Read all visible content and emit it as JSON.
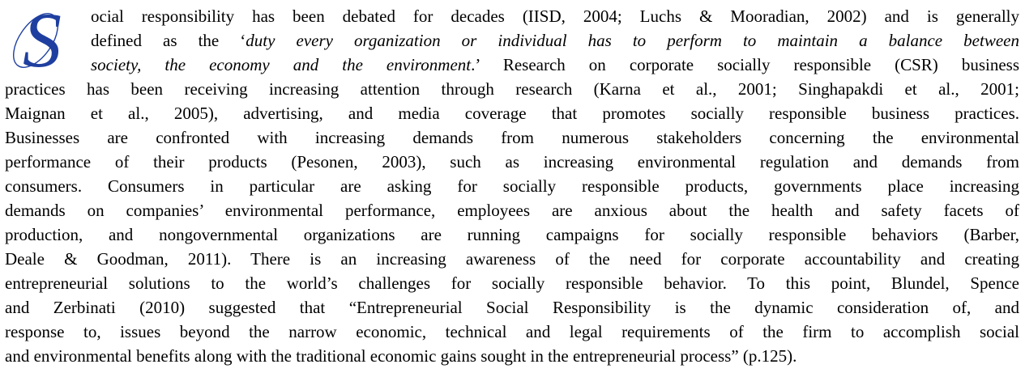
{
  "drop_cap": "S",
  "lines": [
    [
      "ocial responsibility has been debated for decades (IISD, 2004; Luchs & Mooradian, 2002) and is generally"
    ],
    [
      "defined as the ‘",
      {
        "text": "duty every organization or individual has to perform to maintain a balance between",
        "italic": true
      }
    ],
    [
      {
        "text": "society, the economy and the environment",
        "italic": true
      },
      ".’ Research on corporate socially responsible (CSR) business"
    ],
    [
      "practices has been receiving increasing attention through research (Karna et al., 2001; Singhapakdi et al., 2001;"
    ],
    [
      "Maignan et al., 2005), advertising, and media coverage that promotes socially responsible business practices."
    ],
    [
      "Businesses are confronted with increasing demands from numerous stakeholders concerning the environmental"
    ],
    [
      "performance of their products (Pesonen, 2003), such as increasing environmental regulation and demands from"
    ],
    [
      "consumers. Consumers in particular are asking for socially responsible products, governments place increasing"
    ],
    [
      "demands on companies’ environmental performance, employees are anxious about the health and safety facets of"
    ],
    [
      "production, and nongovernmental organizations are running campaigns for socially responsible behaviors (Barber,"
    ],
    [
      "Deale & Goodman, 2011). There is an increasing awareness of the need for corporate accountability and creating"
    ],
    [
      "entrepreneurial solutions to the world’s challenges for socially responsible behavior. To this point, Blundel, Spence"
    ],
    [
      "and Zerbinati (2010) suggested that “Entrepreneurial Social Responsibility is the dynamic consideration of, and"
    ],
    [
      "response to, issues beyond the narrow economic, technical and legal requirements of the firm to accomplish social"
    ],
    [
      "and environmental benefits along with the traditional economic gains sought in the entrepreneurial process” (p.125)."
    ]
  ]
}
